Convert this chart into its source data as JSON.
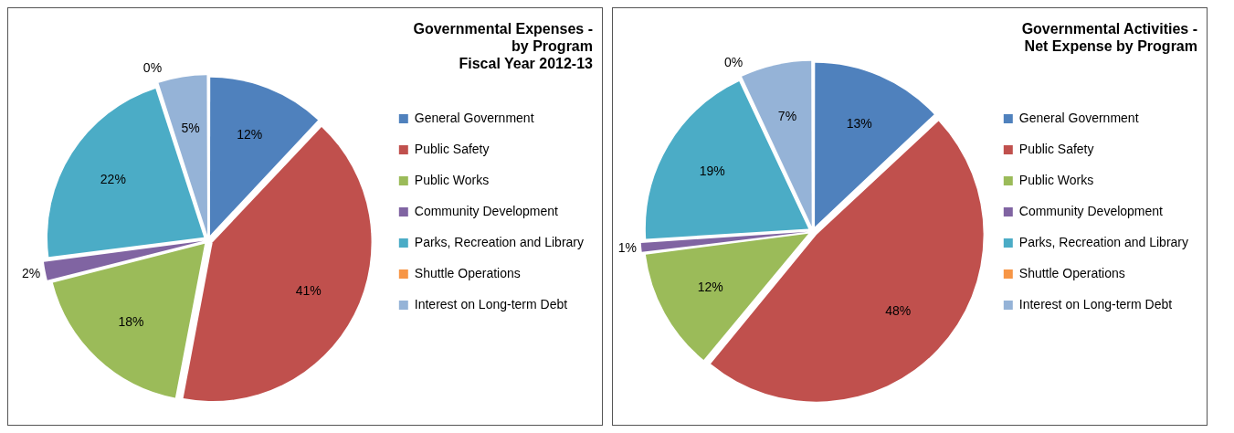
{
  "chart_data": [
    {
      "type": "pie",
      "title": "Governmental Expenses -\nby Program\nFiscal Year 2012-13",
      "categories": [
        "General Government",
        "Public Safety",
        "Public Works",
        "Community Development",
        "Parks, Recreation and Library",
        "Shuttle Operations",
        "Interest on Long-term Debt"
      ],
      "values": [
        12,
        41,
        18,
        2,
        22,
        0,
        5
      ],
      "value_labels": [
        "12%",
        "41%",
        "18%",
        "2%",
        "22%",
        "0%",
        "5%"
      ],
      "colors": [
        "#4f81bd",
        "#c0504d",
        "#9bbb59",
        "#8064a2",
        "#4bacc6",
        "#f79646",
        "#95b3d7"
      ],
      "legend": "right"
    },
    {
      "type": "pie",
      "title": "Governmental Activities -\nNet Expense by Program",
      "categories": [
        "General Government",
        "Public Safety",
        "Public Works",
        "Community Development",
        "Parks, Recreation and Library",
        "Shuttle Operations",
        "Interest on Long-term Debt"
      ],
      "values": [
        13,
        48,
        12,
        1,
        19,
        0,
        7
      ],
      "value_labels": [
        "13%",
        "48%",
        "12%",
        "1%",
        "19%",
        "0%",
        "7%"
      ],
      "colors": [
        "#4f81bd",
        "#c0504d",
        "#9bbb59",
        "#8064a2",
        "#4bacc6",
        "#f79646",
        "#95b3d7"
      ],
      "legend": "right"
    }
  ]
}
